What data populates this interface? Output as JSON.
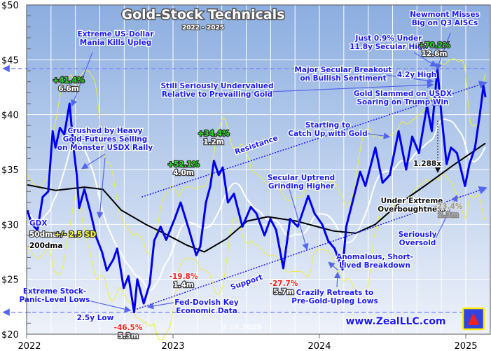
{
  "chart_data": {
    "type": "line",
    "title": "Gold-Stock Technicals",
    "subtitle": "2022 - 2025",
    "date_stamp": "2.19.2025",
    "website": "www.ZealLLC.com",
    "y_ticks": [
      "$50",
      "$45",
      "$40",
      "$35",
      "$30",
      "$25",
      "$20"
    ],
    "y_tick_values": [
      50,
      45,
      40,
      35,
      30,
      25,
      20
    ],
    "x_ticks": [
      "2022",
      "2023",
      "2024",
      "2025"
    ],
    "ylim": [
      20,
      50
    ],
    "xlim": [
      "2022-01-01",
      "2025-03-01"
    ],
    "grid": true,
    "legend": {
      "placement": "left",
      "items": [
        {
          "label": "GDX",
          "color": "#0000ee"
        },
        {
          "label": "50dma",
          "color": "#ffffff"
        },
        {
          "label": "+/- 2.5 SD",
          "color": "#ffff33"
        },
        {
          "label": "200dma",
          "color": "#000000"
        }
      ]
    },
    "colors": {
      "gdx": "#0000ee",
      "dma50": "#ffffff",
      "band": "#eeee44",
      "dma200": "#000000",
      "trend": "#1a1aff",
      "bg_top": "#8caee0",
      "bg_bottom": "#eef2fa"
    },
    "series": [
      {
        "name": "GDX",
        "values": [
          [
            "2022-01-03",
            31.3
          ],
          [
            "2022-01-14",
            30.0
          ],
          [
            "2022-01-28",
            29.5
          ],
          [
            "2022-02-10",
            32.5
          ],
          [
            "2022-02-24",
            33.0
          ],
          [
            "2022-03-07",
            38.5
          ],
          [
            "2022-03-14",
            37.0
          ],
          [
            "2022-03-25",
            38.8
          ],
          [
            "2022-04-05",
            38.2
          ],
          [
            "2022-04-18",
            41.0
          ],
          [
            "2022-04-28",
            37.0
          ],
          [
            "2022-05-06",
            34.5
          ],
          [
            "2022-05-12",
            31.5
          ],
          [
            "2022-05-25",
            33.2
          ],
          [
            "2022-06-10",
            31.0
          ],
          [
            "2022-06-24",
            28.8
          ],
          [
            "2022-07-08",
            27.5
          ],
          [
            "2022-07-20",
            25.8
          ],
          [
            "2022-08-05",
            26.8
          ],
          [
            "2022-08-15",
            27.8
          ],
          [
            "2022-08-31",
            24.2
          ],
          [
            "2022-09-12",
            25.3
          ],
          [
            "2022-09-26",
            22.0
          ],
          [
            "2022-10-04",
            25.0
          ],
          [
            "2022-10-20",
            22.8
          ],
          [
            "2022-11-04",
            24.6
          ],
          [
            "2022-11-15",
            28.5
          ],
          [
            "2022-12-01",
            29.8
          ],
          [
            "2022-12-15",
            28.6
          ],
          [
            "2023-01-05",
            30.5
          ],
          [
            "2023-01-20",
            32.0
          ],
          [
            "2023-02-10",
            29.5
          ],
          [
            "2023-02-28",
            27.2
          ],
          [
            "2023-03-10",
            28.0
          ],
          [
            "2023-03-24",
            32.0
          ],
          [
            "2023-04-04",
            33.5
          ],
          [
            "2023-04-13",
            35.8
          ],
          [
            "2023-04-25",
            34.5
          ],
          [
            "2023-05-05",
            35.2
          ],
          [
            "2023-05-18",
            32.0
          ],
          [
            "2023-06-02",
            32.8
          ],
          [
            "2023-06-23",
            29.8
          ],
          [
            "2023-07-14",
            31.6
          ],
          [
            "2023-07-28",
            31.0
          ],
          [
            "2023-08-17",
            29.0
          ],
          [
            "2023-09-01",
            30.5
          ],
          [
            "2023-09-15",
            29.5
          ],
          [
            "2023-10-03",
            26.0
          ],
          [
            "2023-10-20",
            30.5
          ],
          [
            "2023-11-08",
            29.8
          ],
          [
            "2023-11-24",
            31.5
          ],
          [
            "2023-12-04",
            32.6
          ],
          [
            "2023-12-20",
            31.0
          ],
          [
            "2024-01-08",
            30.0
          ],
          [
            "2024-01-23",
            28.5
          ],
          [
            "2024-02-08",
            27.8
          ],
          [
            "2024-02-28",
            25.9
          ],
          [
            "2024-03-08",
            29.8
          ],
          [
            "2024-03-22",
            31.8
          ],
          [
            "2024-04-12",
            34.8
          ],
          [
            "2024-04-25",
            33.5
          ],
          [
            "2024-05-20",
            37.0
          ],
          [
            "2024-06-07",
            33.8
          ],
          [
            "2024-06-25",
            34.5
          ],
          [
            "2024-07-17",
            38.5
          ],
          [
            "2024-08-05",
            35.0
          ],
          [
            "2024-08-20",
            38.0
          ],
          [
            "2024-09-06",
            36.5
          ],
          [
            "2024-09-26",
            40.8
          ],
          [
            "2024-10-08",
            38.5
          ],
          [
            "2024-10-22",
            44.2
          ],
          [
            "2024-11-01",
            40.0
          ],
          [
            "2024-11-14",
            35.5
          ],
          [
            "2024-11-25",
            37.0
          ],
          [
            "2024-12-10",
            36.5
          ],
          [
            "2024-12-30",
            33.5
          ],
          [
            "2025-01-10",
            35.5
          ],
          [
            "2025-01-24",
            37.0
          ],
          [
            "2025-02-05",
            40.0
          ],
          [
            "2025-02-14",
            42.6
          ],
          [
            "2025-02-19",
            41.6
          ]
        ]
      },
      {
        "name": "200dma",
        "values": [
          [
            "2022-01-03",
            33.6
          ],
          [
            "2022-03-15",
            33.1
          ],
          [
            "2022-05-25",
            33.4
          ],
          [
            "2022-07-10",
            33.2
          ],
          [
            "2022-08-25",
            31.3
          ],
          [
            "2022-10-25",
            30.0
          ],
          [
            "2022-12-20",
            29.0
          ],
          [
            "2023-02-05",
            28.1
          ],
          [
            "2023-03-20",
            27.5
          ],
          [
            "2023-05-15",
            28.7
          ],
          [
            "2023-07-05",
            30.3
          ],
          [
            "2023-08-25",
            30.7
          ],
          [
            "2023-11-05",
            30.3
          ],
          [
            "2024-02-05",
            29.4
          ],
          [
            "2024-04-01",
            29.2
          ],
          [
            "2024-05-20",
            30.0
          ],
          [
            "2024-07-15",
            31.8
          ],
          [
            "2024-09-20",
            33.5
          ],
          [
            "2024-12-01",
            35.4
          ],
          [
            "2025-02-19",
            37.4
          ]
        ]
      }
    ],
    "trendlines": [
      {
        "name": "Resistance",
        "from": [
          "2022-10-15",
          32.5
        ],
        "to": [
          "2025-02-19",
          42.9
        ]
      },
      {
        "name": "Support",
        "from": [
          "2022-09-26",
          22.2
        ],
        "to": [
          "2025-02-19",
          33.3
        ]
      }
    ],
    "reference_lines": [
      44.2,
      22.0
    ],
    "annotations": {
      "usd_mania": [
        "Extreme US-Dollar",
        "Mania Kills Upleg"
      ],
      "crushed": [
        "Crushed by Heavy",
        "Gold-Futures Selling",
        "on Monster USDX Rally"
      ],
      "undervalued": [
        "Still Seriously Undervalued",
        "Relative to Prevailing Gold"
      ],
      "newmont": [
        "Newmont Misses",
        "Big on Q3 AISCs"
      ],
      "just09": [
        "Just 0.9% Under",
        "11.8y Secular High"
      ],
      "breakout": [
        "Major Secular Breakout",
        "on Bullish Sentiment"
      ],
      "high42": [
        "4.2y High"
      ],
      "slammed": [
        "Gold Slammed on USDX",
        "Soaring on Trump Win"
      ],
      "catchup": [
        "Starting to",
        "Catch Up with Gold"
      ],
      "secular": [
        "Secular Uptrend",
        "Grinding Higher"
      ],
      "overbought": [
        "Under Extreme",
        "Overboughtness"
      ],
      "oversold": [
        "Seriously",
        "Oversold"
      ],
      "anomalous": [
        "Anomalous, Short-",
        "Lived Breakdown"
      ],
      "crazily": [
        "Crazily Retreats to",
        "Pre-Gold-Upleg Lows"
      ],
      "panic": [
        "Extreme Stock-",
        "Panic-Level Lows"
      ],
      "fed": [
        "Fed-Dovish Key",
        "Economic Data"
      ],
      "low25": [
        "2.5y Low"
      ],
      "resistance": [
        "Resistance"
      ],
      "support": [
        "Support"
      ],
      "ratio": [
        "1.288x"
      ]
    },
    "moves": [
      {
        "pct": "+41.4%",
        "dur": "6.6m",
        "kind": "pos"
      },
      {
        "pct": "-46.5%",
        "dur": "5.3m",
        "kind": "neg"
      },
      {
        "pct": "+52.1%",
        "dur": "4.0m",
        "kind": "pos"
      },
      {
        "pct": "+34.4%",
        "dur": "1.2m",
        "kind": "pos"
      },
      {
        "pct": "-19.8%",
        "dur": "1.4m",
        "kind": "neg"
      },
      {
        "pct": "-27.7%",
        "dur": "5.7m",
        "kind": "neg"
      },
      {
        "pct": "+70.2%",
        "dur": "12.6m",
        "kind": "pos"
      },
      {
        "pct": "-23.4%",
        "dur": "2.3m",
        "kind": "dim"
      }
    ]
  }
}
